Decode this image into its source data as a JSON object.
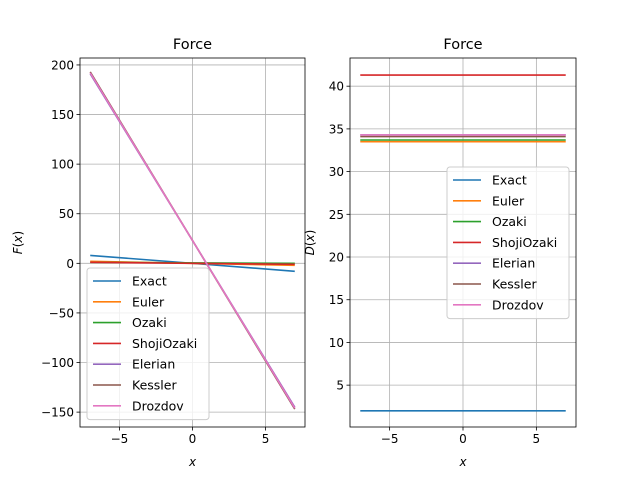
{
  "chart_data": [
    {
      "type": "line",
      "title": "Force",
      "xlabel": "x",
      "ylabel": "F(x)",
      "xlim": [
        -7.7,
        7.7
      ],
      "ylim": [
        -165,
        207
      ],
      "xticks": [
        -5,
        0,
        5
      ],
      "xtick_labels": [
        "−5",
        "0",
        "5"
      ],
      "yticks": [
        -150,
        -100,
        -50,
        0,
        50,
        100,
        150,
        200
      ],
      "ytick_labels": [
        "−150",
        "−100",
        "−50",
        "0",
        "50",
        "100",
        "150",
        "200"
      ],
      "grid": true,
      "legend_position": "lower-left",
      "x": [
        -7,
        7
      ],
      "series": [
        {
          "name": "Exact",
          "color": "#1f77b4",
          "values": [
            8,
            -8
          ]
        },
        {
          "name": "Euler",
          "color": "#ff7f0e",
          "values": [
            2,
            -2
          ]
        },
        {
          "name": "Ozaki",
          "color": "#2ca02c",
          "values": [
            1,
            0
          ]
        },
        {
          "name": "ShojiOzaki",
          "color": "#d62728",
          "values": [
            1,
            -1
          ]
        },
        {
          "name": "Elerian",
          "color": "#9467bd",
          "values": [
            191,
            -145
          ]
        },
        {
          "name": "Kessler",
          "color": "#8c564b",
          "values": [
            193,
            -147
          ]
        },
        {
          "name": "Drozdov",
          "color": "#e377c2",
          "values": [
            192,
            -146
          ]
        }
      ]
    },
    {
      "type": "line",
      "title": "Force",
      "xlabel": "x",
      "ylabel": "D(x)",
      "xlim": [
        -7.7,
        7.7
      ],
      "ylim": [
        0.1,
        43.3
      ],
      "xticks": [
        -5,
        0,
        5
      ],
      "xtick_labels": [
        "−5",
        "0",
        "5"
      ],
      "yticks": [
        5,
        10,
        15,
        20,
        25,
        30,
        35,
        40
      ],
      "ytick_labels": [
        "5",
        "10",
        "15",
        "20",
        "25",
        "30",
        "35",
        "40"
      ],
      "grid": true,
      "legend_position": "center-right",
      "x": [
        -7,
        7
      ],
      "series": [
        {
          "name": "Exact",
          "color": "#1f77b4",
          "values": [
            2.0,
            2.0
          ]
        },
        {
          "name": "Euler",
          "color": "#ff7f0e",
          "values": [
            33.5,
            33.5
          ]
        },
        {
          "name": "Ozaki",
          "color": "#2ca02c",
          "values": [
            33.7,
            33.7
          ]
        },
        {
          "name": "ShojiOzaki",
          "color": "#d62728",
          "values": [
            41.3,
            41.3
          ]
        },
        {
          "name": "Elerian",
          "color": "#9467bd",
          "values": [
            34.3,
            34.3
          ]
        },
        {
          "name": "Kessler",
          "color": "#8c564b",
          "values": [
            34.1,
            34.1
          ]
        },
        {
          "name": "Drozdov",
          "color": "#e377c2",
          "values": [
            34.3,
            34.3
          ]
        }
      ]
    }
  ]
}
